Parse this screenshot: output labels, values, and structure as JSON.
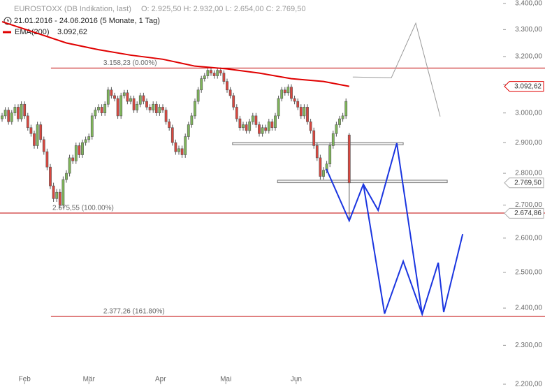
{
  "chart_data": {
    "type": "candlestick",
    "title": "EUROSTOXX (DB Indikation, last)",
    "ohlc_text": "O: 2.925,50   H: 2.932,00   L: 2.654,00   C: 2.769,50",
    "subtitle": "21.01.2016 - 24.06.2016 (5 Monate, 1 Tag)",
    "log_scale": true,
    "xlim": [
      -0.65,
      155.87
    ],
    "ylim": [
      2200,
      3400
    ],
    "xticks": [
      {
        "value": 7,
        "label": "Feb"
      },
      {
        "value": 27,
        "label": "Mär"
      },
      {
        "value": 49.3,
        "label": "Apr"
      },
      {
        "value": 69.6,
        "label": "Mai"
      },
      {
        "value": 91.5,
        "label": "Jun"
      }
    ],
    "yticks": [
      {
        "value": 3400,
        "label": "3.400,00"
      },
      {
        "value": 3300,
        "label": "3.300,00"
      },
      {
        "value": 3200,
        "label": "3.200,00"
      },
      {
        "value": 3100,
        "label": "3.100,00"
      },
      {
        "value": 3000,
        "label": "3.000,00"
      },
      {
        "value": 2900,
        "label": "2.900,00"
      },
      {
        "value": 2800,
        "label": "2.800,00"
      },
      {
        "value": 2700,
        "label": "2.700,00"
      },
      {
        "value": 2600,
        "label": "2.600,00"
      },
      {
        "value": 2500,
        "label": "2.500,00"
      },
      {
        "value": 2400,
        "label": "2.400,00"
      },
      {
        "value": 2300,
        "label": "2.300,00"
      },
      {
        "value": 2200,
        "label": "2.200,00"
      }
    ],
    "up_color": "#7fb55a",
    "down_color": "#d9473f",
    "x": [
      0,
      1,
      2,
      3,
      4,
      5,
      6,
      7,
      8,
      9,
      10,
      11,
      12,
      13,
      14,
      15,
      16,
      17,
      18,
      19,
      20,
      21,
      22,
      23,
      24,
      25,
      26,
      27,
      28,
      29,
      30,
      31,
      32,
      33,
      34,
      35,
      36,
      37,
      38,
      39,
      40,
      41,
      42,
      43,
      44,
      45,
      46,
      47,
      48,
      49,
      50,
      51,
      52,
      53,
      54,
      55,
      56,
      57,
      58,
      59,
      60,
      61,
      62,
      63,
      64,
      65,
      66,
      67,
      68,
      69,
      70,
      71,
      72,
      73,
      74,
      75,
      76,
      77,
      78,
      79,
      80,
      81,
      82,
      83,
      84,
      85,
      86,
      87,
      88,
      89,
      90,
      91,
      92,
      93,
      94,
      95,
      96,
      97,
      98,
      99,
      100,
      101,
      102,
      103,
      104,
      105,
      106,
      107,
      108
    ],
    "open": [
      2980,
      2990,
      3010,
      2970,
      3000,
      3020,
      2980,
      3030,
      2990,
      2950,
      2930,
      2890,
      2960,
      2910,
      2870,
      2820,
      2760,
      2720,
      2740,
      2700,
      2780,
      2800,
      2850,
      2840,
      2890,
      2860,
      2900,
      2910,
      2920,
      2990,
      3010,
      3020,
      3000,
      3030,
      3080,
      3060,
      3050,
      2990,
      3060,
      3070,
      3040,
      3050,
      3010,
      3030,
      3060,
      3040,
      3020,
      3010,
      3030,
      3000,
      3020,
      3010,
      2970,
      2950,
      2900,
      2870,
      2880,
      2860,
      2920,
      2960,
      2990,
      3040,
      3080,
      3120,
      3130,
      3150,
      3140,
      3130,
      3150,
      3140,
      3110,
      3080,
      3060,
      3020,
      2980,
      2950,
      2960,
      2940,
      2970,
      2990,
      2960,
      2930,
      2950,
      2940,
      2970,
      2950,
      2990,
      3050,
      3080,
      3070,
      3090,
      3050,
      3040,
      3020,
      2990,
      3020,
      2970,
      2940,
      2890,
      2850,
      2790,
      2810,
      2830,
      2890,
      2930,
      2960,
      2980,
      2990,
      2925.5
    ],
    "high": [
      3000,
      3020,
      3020,
      3010,
      3030,
      3030,
      3040,
      3040,
      3000,
      2960,
      2940,
      2970,
      2970,
      2920,
      2880,
      2830,
      2770,
      2750,
      2750,
      2790,
      2810,
      2860,
      2860,
      2900,
      2900,
      2910,
      2920,
      2930,
      3000,
      3020,
      3030,
      3030,
      3040,
      3090,
      3090,
      3070,
      3060,
      3070,
      3080,
      3080,
      3060,
      3060,
      3040,
      3070,
      3070,
      3050,
      3030,
      3040,
      3040,
      3030,
      3030,
      3020,
      2980,
      2960,
      2910,
      2890,
      2890,
      2930,
      2970,
      3000,
      3050,
      3090,
      3130,
      3140,
      3160,
      3160,
      3150,
      3160,
      3160,
      3150,
      3120,
      3090,
      3070,
      3030,
      2990,
      2970,
      2970,
      2980,
      3000,
      3000,
      2970,
      2960,
      2960,
      2980,
      2980,
      3000,
      3060,
      3090,
      3090,
      3100,
      3100,
      3060,
      3050,
      3030,
      3030,
      3030,
      2980,
      2950,
      2900,
      2860,
      2820,
      2840,
      2900,
      2940,
      2970,
      2990,
      3000,
      3050,
      2932
    ],
    "low": [
      2970,
      2980,
      2960,
      2960,
      2990,
      2970,
      2970,
      2980,
      2940,
      2920,
      2880,
      2880,
      2900,
      2860,
      2810,
      2750,
      2710,
      2710,
      2690,
      2690,
      2770,
      2790,
      2830,
      2830,
      2850,
      2850,
      2890,
      2900,
      2910,
      2980,
      3000,
      2990,
      2990,
      3020,
      3050,
      3040,
      2980,
      2980,
      3050,
      3030,
      3030,
      3000,
      3000,
      3020,
      3030,
      3010,
      3000,
      3000,
      2990,
      2990,
      3000,
      2960,
      2940,
      2890,
      2860,
      2860,
      2850,
      2850,
      2910,
      2950,
      2980,
      3030,
      3070,
      3110,
      3120,
      3130,
      3120,
      3120,
      3130,
      3100,
      3070,
      3050,
      3010,
      2970,
      2940,
      2940,
      2930,
      2930,
      2960,
      2950,
      2920,
      2920,
      2930,
      2930,
      2940,
      2940,
      2980,
      3040,
      3060,
      3060,
      3040,
      3030,
      3010,
      2980,
      2980,
      2960,
      2930,
      2880,
      2840,
      2780,
      2780,
      2800,
      2820,
      2880,
      2920,
      2950,
      2970,
      2980,
      2654
    ],
    "close": [
      2990,
      3010,
      2970,
      3000,
      3020,
      2980,
      3030,
      2990,
      2950,
      2930,
      2890,
      2960,
      2910,
      2870,
      2820,
      2760,
      2720,
      2740,
      2700,
      2780,
      2800,
      2850,
      2840,
      2890,
      2860,
      2900,
      2910,
      2920,
      2990,
      3010,
      3020,
      3000,
      3030,
      3080,
      3060,
      3050,
      2990,
      3060,
      3070,
      3040,
      3050,
      3010,
      3030,
      3060,
      3040,
      3020,
      3010,
      3030,
      3000,
      3020,
      3010,
      2970,
      2950,
      2900,
      2870,
      2880,
      2860,
      2920,
      2960,
      2990,
      3040,
      3080,
      3120,
      3130,
      3150,
      3140,
      3130,
      3150,
      3140,
      3110,
      3080,
      3060,
      3020,
      2980,
      2950,
      2960,
      2940,
      2970,
      2990,
      2960,
      2930,
      2950,
      2940,
      2970,
      2950,
      2990,
      3050,
      3080,
      3070,
      3090,
      3050,
      3040,
      3020,
      2990,
      3020,
      2970,
      2940,
      2890,
      2850,
      2790,
      2810,
      2830,
      2890,
      2930,
      2960,
      2980,
      2990,
      3040,
      2769.5
    ],
    "series": [
      {
        "name": "EMA(200)",
        "legend_value": "3.092,62",
        "color": "#e00000",
        "x": [
          0,
          10,
          20,
          30,
          40,
          50,
          60,
          70,
          80,
          90,
          100,
          108
        ],
        "values": [
          3330,
          3290,
          3250,
          3225,
          3205,
          3190,
          3165,
          3155,
          3140,
          3120,
          3110,
          3092.62
        ]
      }
    ],
    "fib_lines": [
      {
        "value": 3158.23,
        "label": "3.158,23 (0.00%)",
        "start": 15.2
      },
      {
        "value": 2675.55,
        "label": "2.675,55 (100.00%)",
        "start": -0.65
      },
      {
        "value": 2377.26,
        "label": "2.377,26 (161.80%)",
        "start": 15.2
      }
    ],
    "fib_color": "#c00000",
    "zones": [
      {
        "x": [
          71.7,
          124.8
        ],
        "values": [
          2893,
          2900
        ]
      },
      {
        "x": [
          85.7,
          138.5
        ],
        "values": [
          2770,
          2778
        ]
      }
    ],
    "projections": [
      {
        "color": "#999999",
        "x": [
          109.1,
          121.1,
          128.7,
          136.3
        ],
        "values": [
          3126,
          3123,
          3324,
          2988
        ]
      },
      {
        "color": "#1a35e0",
        "x": [
          100.9,
          108,
          112.4,
          117,
          122.8,
          130.7
        ],
        "values": [
          2814,
          2652,
          2765,
          2684,
          2898,
          2383
        ]
      },
      {
        "color": "#1a35e0",
        "x": [
          112.4,
          119,
          124.8,
          130.7,
          135.7,
          137.4,
          143.3
        ],
        "values": [
          2765,
          2385,
          2532,
          2383,
          2528,
          2389,
          2612
        ]
      }
    ],
    "price_tags": [
      {
        "value": 3092.62,
        "label": "3.092,62",
        "color": "#e00000"
      },
      {
        "value": 2769.5,
        "label": "2.769,50",
        "color": "#aaaaaa"
      },
      {
        "value": 2674.86,
        "label": "2.674,86",
        "color": "#aaaaaa"
      }
    ]
  }
}
